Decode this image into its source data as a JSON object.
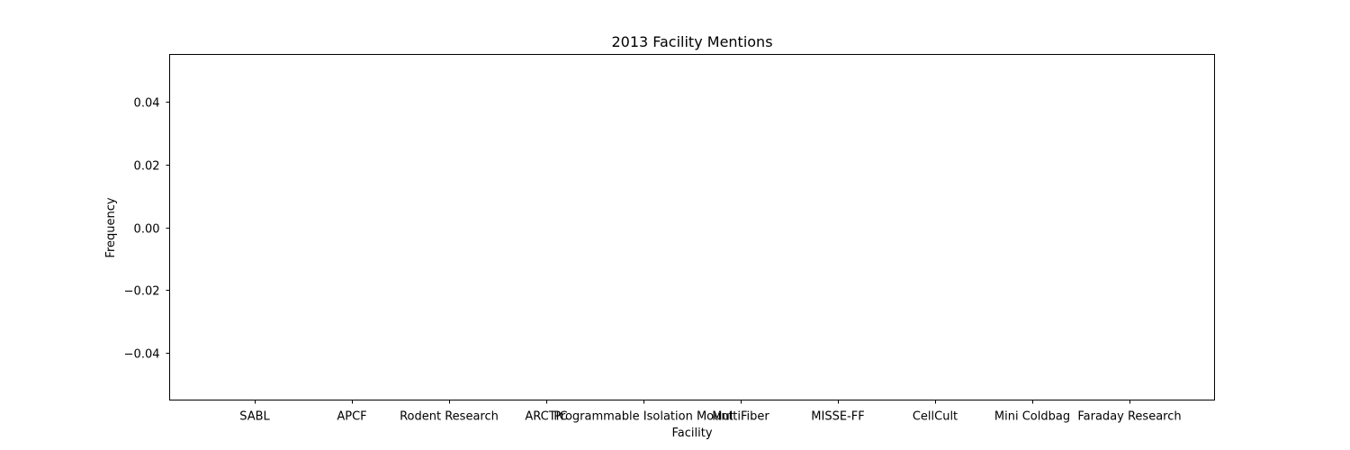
{
  "chart_data": {
    "type": "bar",
    "title": "2013 Facility Mentions",
    "xlabel": "Facility",
    "ylabel": "Frequency",
    "categories": [
      "SABL",
      "APCF",
      "Rodent Research",
      "ARCTIC",
      "Programmable Isolation Mount",
      "MultiFiber",
      "MISSE-FF",
      "CellCult",
      "Mini Coldbag",
      "Faraday Research"
    ],
    "values": [
      0,
      0,
      0,
      0,
      0,
      0,
      0,
      0,
      0,
      0
    ],
    "ylim": [
      -0.055,
      0.055
    ],
    "yticks": [
      0.04,
      0.02,
      0.0,
      -0.02,
      -0.04
    ],
    "ytick_labels": [
      "0.04",
      "0.02",
      "0.00",
      "−0.02",
      "−0.04"
    ],
    "grid": false,
    "legend": null,
    "bar_color": "#1f77b4"
  }
}
